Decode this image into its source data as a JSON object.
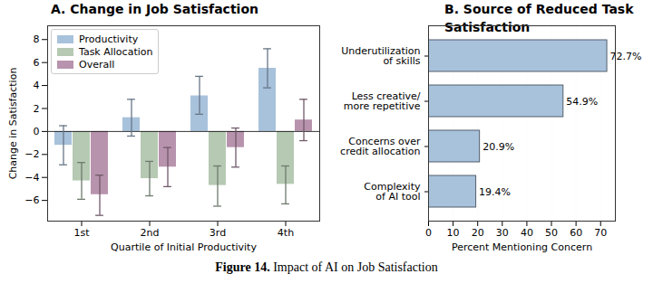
{
  "chart_data": [
    {
      "type": "bar",
      "title": "A. Change in Job Satisfaction",
      "xlabel": "Quartile of Initial Productivity",
      "ylabel": "Change in Satisfaction",
      "categories": [
        "1st",
        "2nd",
        "3rd",
        "4th"
      ],
      "series": [
        {
          "name": "Productivity",
          "color": "#a8c2dc",
          "values": [
            -1.2,
            1.2,
            3.1,
            5.5
          ],
          "ci_low": [
            -2.9,
            -0.4,
            1.5,
            3.8
          ],
          "ci_high": [
            0.5,
            2.8,
            4.8,
            7.2
          ]
        },
        {
          "name": "Task Allocation",
          "color": "#b6c9b3",
          "values": [
            -4.3,
            -4.1,
            -4.7,
            -4.6
          ],
          "ci_low": [
            -5.9,
            -5.6,
            -6.5,
            -6.3
          ],
          "ci_high": [
            -2.7,
            -2.6,
            -3.0,
            -3.0
          ]
        },
        {
          "name": "Overall",
          "color": "#b893ad",
          "values": [
            -5.5,
            -3.1,
            -1.4,
            1.0
          ],
          "ci_low": [
            -7.3,
            -4.8,
            -3.1,
            -0.8
          ],
          "ci_high": [
            -3.8,
            -1.4,
            0.3,
            2.8
          ]
        }
      ],
      "ylim": [
        -7.8,
        9.2
      ],
      "yticks": [
        {
          "value": -6,
          "label": "−6"
        },
        {
          "value": -4,
          "label": "−4"
        },
        {
          "value": -2,
          "label": "−2"
        },
        0,
        2,
        4,
        6,
        8
      ],
      "legend": "upper left",
      "grid": false
    },
    {
      "type": "bar",
      "title": "B. Source of Reduced Task Satisfaction",
      "xlabel": "Percent Mentioning Concern",
      "orientation": "horizontal",
      "categories": [
        "Underutilization\nof skills",
        "Less creative/\nmore repetitive",
        "Concerns over\ncredit allocation",
        "Complexity\nof AI tool"
      ],
      "values": [
        72.7,
        54.9,
        20.9,
        19.4
      ],
      "value_labels": [
        "72.7%",
        "54.9%",
        "20.9%",
        "19.4%"
      ],
      "data_labels": true,
      "color": "#a8c2dc",
      "xlim": [
        0,
        76
      ],
      "xticks": [
        0,
        10,
        20,
        30,
        40,
        50,
        60,
        70
      ],
      "grid": true
    }
  ],
  "caption": {
    "label": "Figure 14.",
    "text": "Impact of AI on Job Satisfaction"
  }
}
